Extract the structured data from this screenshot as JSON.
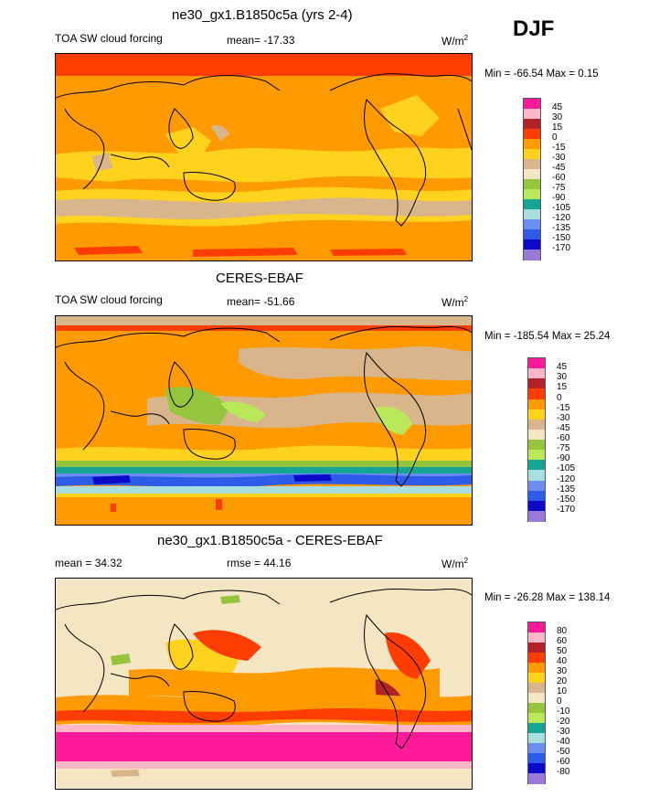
{
  "season": "DJF",
  "units_base": "W/m",
  "units_exp": "2",
  "panels": [
    {
      "title": "ne30_gx1.B1850c5a (yrs 2-4)",
      "left_label": "TOA SW cloud forcing",
      "center_label": "mean= -17.33",
      "minmax": "Min = -66.54 Max =   0.15",
      "colorbar": {
        "colors": [
          "#ff1a9c",
          "#ffb6c6",
          "#b22228",
          "#ff3d00",
          "#ff9a00",
          "#ffd21e",
          "#d9b58c",
          "#f4e6c2",
          "#95c43d",
          "#b9e85b",
          "#16a594",
          "#a8dedd",
          "#6b8ef0",
          "#2c5ce8",
          "#0a0ac8",
          "#9a79d9"
        ],
        "labels": [
          "45",
          "30",
          "15",
          "0",
          "-15",
          "-30",
          "-45",
          "-60",
          "-75",
          "-90",
          "-105",
          "-120",
          "-135",
          "-150",
          "-170"
        ]
      }
    },
    {
      "title": "CERES-EBAF",
      "left_label": "TOA SW cloud forcing",
      "center_label": "mean= -51.66",
      "minmax": "Min = -185.54 Max =  25.24",
      "colorbar": {
        "colors": [
          "#ff1a9c",
          "#ffb6c6",
          "#b22228",
          "#ff3d00",
          "#ff9a00",
          "#ffd21e",
          "#d9b58c",
          "#f4e6c2",
          "#95c43d",
          "#b9e85b",
          "#16a594",
          "#a8dedd",
          "#6b8ef0",
          "#2c5ce8",
          "#0a0ac8",
          "#9a79d9"
        ],
        "labels": [
          "45",
          "30",
          "15",
          "0",
          "-15",
          "-30",
          "-45",
          "-60",
          "-75",
          "-90",
          "-105",
          "-120",
          "-135",
          "-150",
          "-170"
        ]
      }
    },
    {
      "title": "ne30_gx1.B1850c5a - CERES-EBAF",
      "left_label": "mean =  34.32",
      "center_label": "rmse =  44.16",
      "minmax": "Min = -26.28 Max = 138.14",
      "colorbar": {
        "colors": [
          "#ff1a9c",
          "#ffb6c6",
          "#b22228",
          "#ff3d00",
          "#ff9a00",
          "#ffd21e",
          "#d9b58c",
          "#f4e6c2",
          "#95c43d",
          "#b9e85b",
          "#16a594",
          "#a8dedd",
          "#6b8ef0",
          "#2c5ce8",
          "#0a0ac8",
          "#9a79d9"
        ],
        "labels": [
          "80",
          "60",
          "50",
          "40",
          "30",
          "20",
          "10",
          "0",
          "-10",
          "-20",
          "-30",
          "-40",
          "-50",
          "-60",
          "-80"
        ]
      }
    }
  ]
}
